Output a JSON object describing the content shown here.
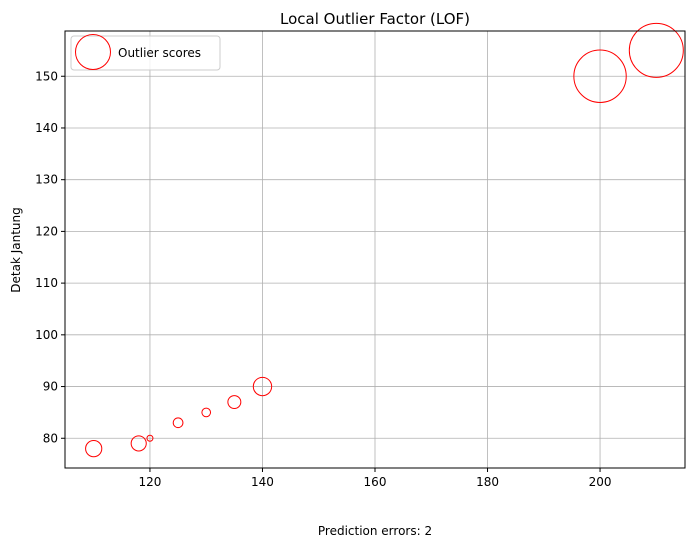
{
  "chart_data": {
    "type": "scatter",
    "title": "Local Outlier Factor (LOF)",
    "xlabel": "Prediction errors: 2",
    "ylabel": "Detak Jantung",
    "xlim": [
      104.9,
      215.1
    ],
    "ylim": [
      74.25,
      158.75
    ],
    "xticks": [
      120,
      140,
      160,
      180,
      200
    ],
    "yticks": [
      80,
      90,
      100,
      110,
      120,
      130,
      140,
      150
    ],
    "grid": true,
    "legend_position": "top-left",
    "marker_color": "#ff0000",
    "marker_fill": "none",
    "series": [
      {
        "name": "Outlier scores",
        "points": [
          {
            "x": 110,
            "y": 78,
            "score": 0.3
          },
          {
            "x": 118,
            "y": 79,
            "score": 0.28
          },
          {
            "x": 120,
            "y": 80,
            "score": 0.06
          },
          {
            "x": 125,
            "y": 83,
            "score": 0.18
          },
          {
            "x": 130,
            "y": 85,
            "score": 0.16
          },
          {
            "x": 135,
            "y": 87,
            "score": 0.24
          },
          {
            "x": 140,
            "y": 90,
            "score": 0.34
          },
          {
            "x": 200,
            "y": 150,
            "score": 0.97
          },
          {
            "x": 210,
            "y": 155,
            "score": 1.0
          }
        ]
      }
    ]
  }
}
